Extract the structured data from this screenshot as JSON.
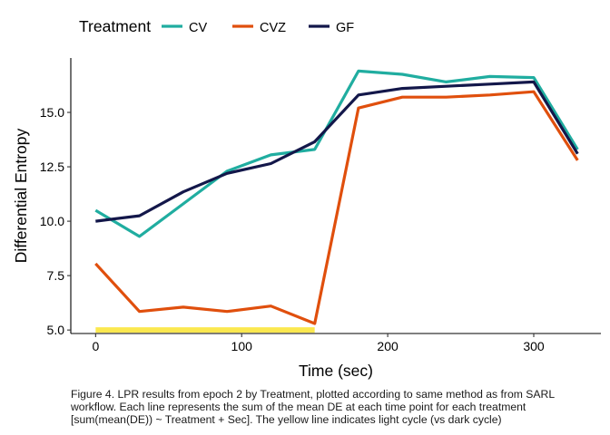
{
  "chart_data": {
    "type": "line",
    "title": "",
    "xlabel": "Time (sec)",
    "ylabel": "Differential Entropy",
    "xlim": [
      -17,
      346
    ],
    "ylim": [
      4.84,
      17.5
    ],
    "x_ticks": [
      0,
      100,
      200,
      300
    ],
    "y_ticks": [
      5.0,
      7.5,
      10.0,
      12.5,
      15.0
    ],
    "y_tick_labels": [
      "5.0",
      "7.5",
      "10.0",
      "12.5",
      "15.0"
    ],
    "grid": false,
    "legend": {
      "title": "Treatment",
      "position": "top-left"
    },
    "x": [
      0,
      30,
      60,
      90,
      120,
      150,
      180,
      210,
      240,
      270,
      300,
      330
    ],
    "series": [
      {
        "name": "CV",
        "color": "#20ada0",
        "values": [
          10.5,
          9.3,
          10.8,
          12.3,
          13.05,
          13.3,
          16.9,
          16.75,
          16.4,
          16.65,
          16.6,
          13.3
        ]
      },
      {
        "name": "CVZ",
        "color": "#e04f0d",
        "values": [
          8.05,
          5.85,
          6.05,
          5.85,
          6.1,
          5.3,
          15.2,
          15.7,
          15.7,
          15.8,
          15.95,
          12.8
        ]
      },
      {
        "name": "GF",
        "color": "#13174a",
        "values": [
          10.0,
          10.25,
          11.35,
          12.2,
          12.65,
          13.65,
          15.8,
          16.1,
          16.2,
          16.3,
          16.4,
          13.1
        ]
      }
    ],
    "light_cycle": {
      "x_start": 0,
      "x_end": 150,
      "y": 5.0,
      "color": "#fbe84f"
    }
  },
  "caption": {
    "lines": [
      "Figure 4. LPR results from epoch 2 by Treatment, plotted according to same method as from SARL",
      "workflow. Each line represents the sum of the mean DE at each time point for each treatment",
      "[sum(mean(DE)) ~ Treatment + Sec]. The yellow line indicates light cycle (vs dark cycle)"
    ]
  }
}
